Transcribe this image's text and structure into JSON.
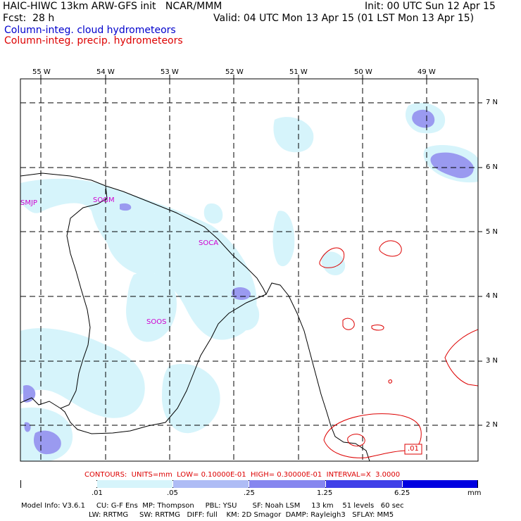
{
  "header": {
    "line1_left": "HAIC-HIWC 13km ARW-GFS init   NCAR/MMM",
    "line1_right": "Init: 00 UTC Sun 12 Apr 15",
    "line2_left": "Fcst:  28 h",
    "line2_right": "Valid: 04 UTC Mon 13 Apr 15 (01 LST Mon 13 Apr 15)",
    "legend_cloud": "Column-integ. cloud hydrometeors",
    "legend_precip": "Column-integ. precip. hydrometeors"
  },
  "colors": {
    "cloud_legend": "#0000cc",
    "precip_legend": "#dd0000",
    "station": "#d000d0",
    "shade1": "#d6f4fb",
    "shade2": "#aebcf5",
    "shade3": "#8686ef",
    "shade4": "#4040e8",
    "shade5": "#0000e0"
  },
  "axes": {
    "lon_labels": [
      "55 W",
      "54 W",
      "53 W",
      "52 W",
      "51 W",
      "50 W",
      "49 W"
    ],
    "lat_labels": [
      "7 N",
      "6 N",
      "5 N",
      "4 N",
      "3 N",
      "2 N"
    ]
  },
  "stations": [
    "SMJP",
    "SOGM",
    "SOCA",
    "SOOS"
  ],
  "contour_label": ".01",
  "contours_caption": "CONTOURS:  UNITS=mm  LOW= 0.10000E-01  HIGH= 0.30000E-01  INTERVAL=X  3.0000",
  "colorbar": {
    "labels": [
      ".01",
      ".05",
      ".25",
      "1.25",
      "6.25"
    ],
    "unit": "mm"
  },
  "model_info": {
    "line1": "Model Info: V3.6.1     CU: G-F Ens  MP: Thompson     PBL: YSU       SF: Noah LSM     13 km    51 levels   60 sec",
    "line2": "LW: RRTMG     SW: RRTMG   DIFF: full    KM: 2D Smagor  DAMP: Rayleigh3   SFLAY: MM5"
  }
}
